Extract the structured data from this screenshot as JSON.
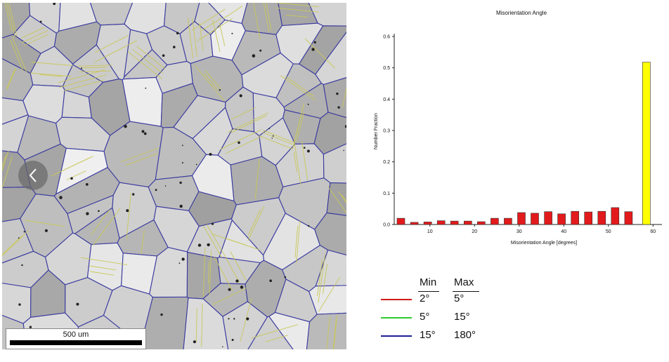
{
  "micrograph": {
    "scalebar_label": "500 um",
    "prev_icon": "chevron-left-icon"
  },
  "chart_data": {
    "type": "bar",
    "title": "Misorientation Angle",
    "xlabel": "Misorientation Angle [degrees]",
    "ylabel": "Number Fraction",
    "xlim": [
      2,
      62
    ],
    "ylim": [
      0,
      0.6
    ],
    "x_ticks": [
      10,
      20,
      30,
      40,
      50,
      60
    ],
    "y_ticks": [
      0.0,
      0.1,
      0.2,
      0.3,
      0.4,
      0.5,
      0.6
    ],
    "y_tick_labels": [
      "0.0",
      "0.1",
      "0.2",
      "0.3",
      "0.4",
      "0.5",
      "0.6"
    ],
    "grid": false,
    "bars": [
      {
        "x": 3.5,
        "value": 0.02,
        "color": "#e31a1c"
      },
      {
        "x": 6.5,
        "value": 0.007,
        "color": "#e31a1c"
      },
      {
        "x": 9.5,
        "value": 0.008,
        "color": "#e31a1c"
      },
      {
        "x": 12.5,
        "value": 0.012,
        "color": "#e31a1c"
      },
      {
        "x": 15.5,
        "value": 0.011,
        "color": "#e31a1c"
      },
      {
        "x": 18.5,
        "value": 0.011,
        "color": "#e31a1c"
      },
      {
        "x": 21.5,
        "value": 0.009,
        "color": "#e31a1c"
      },
      {
        "x": 24.5,
        "value": 0.02,
        "color": "#e31a1c"
      },
      {
        "x": 27.5,
        "value": 0.02,
        "color": "#e31a1c"
      },
      {
        "x": 30.5,
        "value": 0.038,
        "color": "#e31a1c"
      },
      {
        "x": 33.5,
        "value": 0.036,
        "color": "#e31a1c"
      },
      {
        "x": 36.5,
        "value": 0.041,
        "color": "#e31a1c"
      },
      {
        "x": 39.5,
        "value": 0.034,
        "color": "#e31a1c"
      },
      {
        "x": 42.5,
        "value": 0.042,
        "color": "#e31a1c"
      },
      {
        "x": 45.5,
        "value": 0.04,
        "color": "#e31a1c"
      },
      {
        "x": 48.5,
        "value": 0.042,
        "color": "#e31a1c"
      },
      {
        "x": 51.5,
        "value": 0.054,
        "color": "#e31a1c"
      },
      {
        "x": 54.5,
        "value": 0.041,
        "color": "#e31a1c"
      },
      {
        "x": 58.5,
        "value": 0.518,
        "color": "#ffff00"
      }
    ]
  },
  "legend": {
    "min_header": "Min",
    "max_header": "Max",
    "rows": [
      {
        "min": "2°",
        "max": "5°",
        "color": "#d11a1a"
      },
      {
        "min": "5°",
        "max": "15°",
        "color": "#2ecc2e"
      },
      {
        "min": "15°",
        "max": "180°",
        "color": "#1e1e96"
      }
    ]
  }
}
